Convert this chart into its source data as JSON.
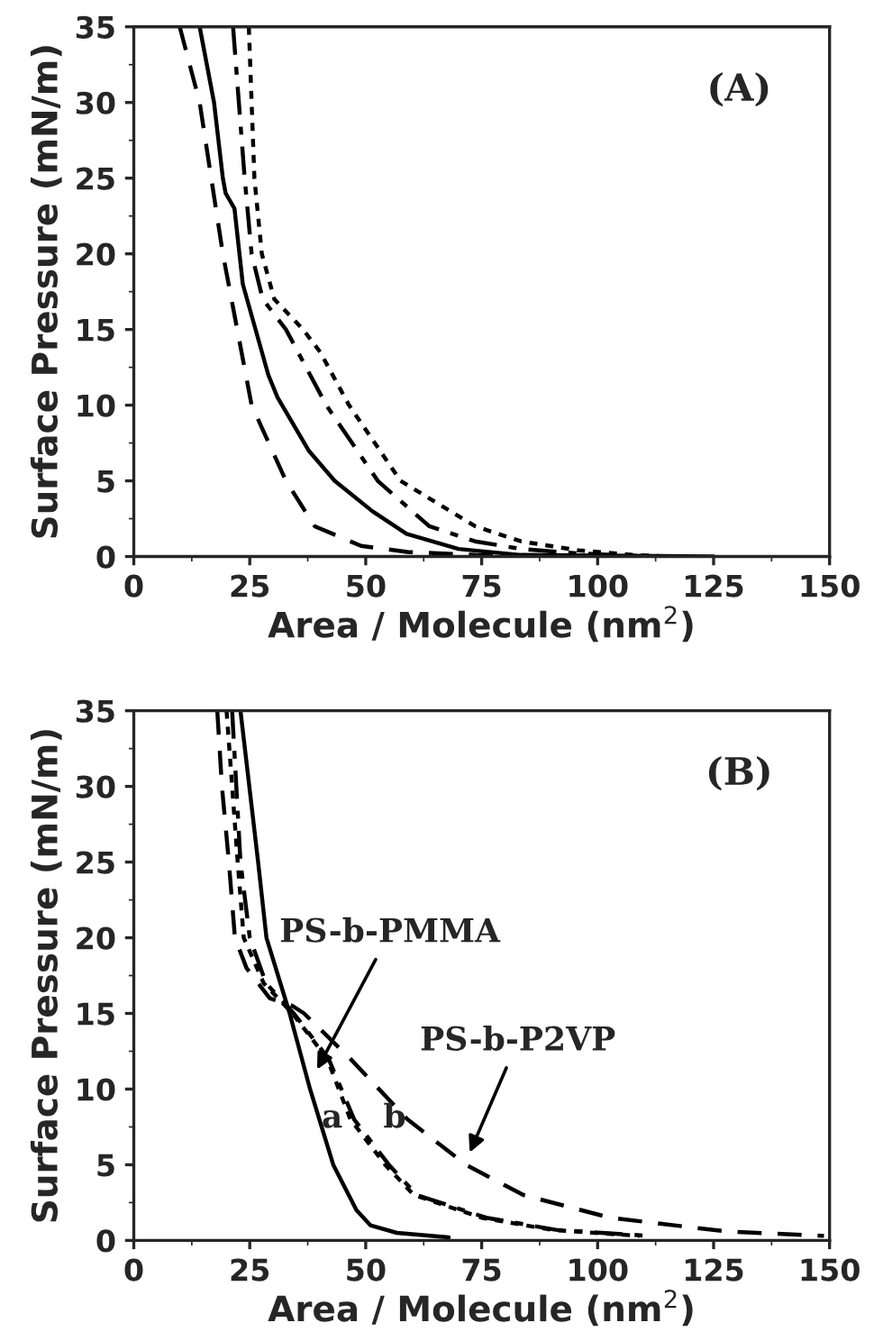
{
  "chart_data": [
    {
      "type": "line",
      "xlabel": "Area / Molecule (nm$^{2}$)",
      "ylabel": "Surface Pressure (mN/m)",
      "xlim": [
        0,
        150
      ],
      "ylim": [
        0,
        35
      ],
      "xticks": [
        0,
        25,
        50,
        75,
        100,
        125,
        150
      ],
      "yticks": [
        0,
        5,
        10,
        15,
        20,
        25,
        30,
        35
      ],
      "grid": false,
      "legend": false,
      "annotations": [
        "(A)"
      ],
      "series": [
        {
          "color": "#000000",
          "line_style": "solid",
          "x": [
            14.2,
            17.3,
            19.2,
            19.8,
            21.7,
            23.5,
            29,
            31,
            37.7,
            43.3,
            51.4,
            58.8,
            70,
            83.5,
            125
          ],
          "values": [
            35,
            30,
            25,
            24,
            23,
            18,
            12,
            10.5,
            7,
            5,
            3,
            1.5,
            0.5,
            0.1,
            0
          ]
        },
        {
          "color": "#000000",
          "line_style": "dashed",
          "x": [
            9.9,
            14.2,
            16.7,
            19.2,
            22.3,
            25.4,
            32.8,
            39,
            49,
            59,
            73.6,
            90
          ],
          "values": [
            35,
            30,
            25,
            20,
            15,
            10,
            5,
            2,
            0.7,
            0.3,
            0.1,
            0
          ]
        },
        {
          "color": "#000000",
          "line_style": "dashdot",
          "x": [
            21.4,
            23.9,
            25.4,
            27.8,
            32.8,
            41.5,
            52.6,
            63.7,
            73.6,
            83.5,
            96,
            112
          ],
          "values": [
            35,
            25,
            20,
            17,
            15,
            10,
            5,
            2,
            1,
            0.5,
            0.2,
            0
          ]
        },
        {
          "color": "#000000",
          "line_style": "dotted",
          "x": [
            24.8,
            26,
            27.6,
            30.3,
            36.5,
            40.2,
            46.4,
            57.5,
            73.6,
            83.5,
            96,
            108,
            115
          ],
          "values": [
            35,
            25,
            20,
            17,
            15,
            13.5,
            10,
            5,
            2,
            1,
            0.4,
            0.1,
            0
          ]
        }
      ]
    },
    {
      "type": "line",
      "xlabel": "Area / Molecule (nm$^{2}$)",
      "ylabel": "Surface Pressure (mN/m)",
      "xlim": [
        0,
        150
      ],
      "ylim": [
        0,
        35
      ],
      "xticks": [
        0,
        25,
        50,
        75,
        100,
        125,
        150
      ],
      "yticks": [
        0,
        5,
        10,
        15,
        20,
        25,
        30,
        35
      ],
      "grid": false,
      "legend": false,
      "annotations": [
        "(B)",
        {
          "text": "PS-b-PMMA",
          "x": 39,
          "y": 11
        },
        {
          "text": "PS-b-P2VP",
          "x": 72,
          "y": 5.5
        },
        "a",
        "b"
      ],
      "series": [
        {
          "color": "#000000",
          "line_style": "solid",
          "x": [
            23,
            24.9,
            26.8,
            28.6,
            33.6,
            38,
            43,
            48,
            51,
            56.7,
            67.9
          ],
          "values": [
            35,
            30,
            25,
            20,
            15,
            10,
            5,
            2,
            1,
            0.5,
            0.2
          ]
        },
        {
          "color": "#000000",
          "line_style": "dashed",
          "x": [
            18,
            19,
            20.5,
            21.8,
            24.3,
            29.3,
            34.2,
            36.7,
            46.7,
            59,
            71.6,
            84,
            102.7,
            127.6,
            148.8
          ],
          "values": [
            35,
            30,
            25,
            20,
            18,
            16,
            15.5,
            15,
            12,
            8,
            5,
            3,
            1.5,
            0.6,
            0.3
          ]
        },
        {
          "color": "#000000",
          "line_style": "dotted",
          "x": [
            20,
            22.4,
            23.7,
            28,
            34.2,
            41.7,
            46.7,
            54.2,
            60.4,
            75,
            90,
            109
          ],
          "values": [
            35,
            25,
            20,
            17,
            15,
            12,
            8,
            5,
            3,
            1.5,
            0.7,
            0.3
          ]
        },
        {
          "color": "#000000",
          "line_style": "dashdot",
          "x": [
            21.2,
            23,
            25,
            28.5,
            34.5,
            42,
            47.5,
            55,
            61,
            76,
            91,
            111
          ],
          "values": [
            35,
            25,
            20,
            17,
            15,
            12,
            8,
            5,
            3,
            1.5,
            0.7,
            0.3
          ]
        }
      ]
    }
  ]
}
